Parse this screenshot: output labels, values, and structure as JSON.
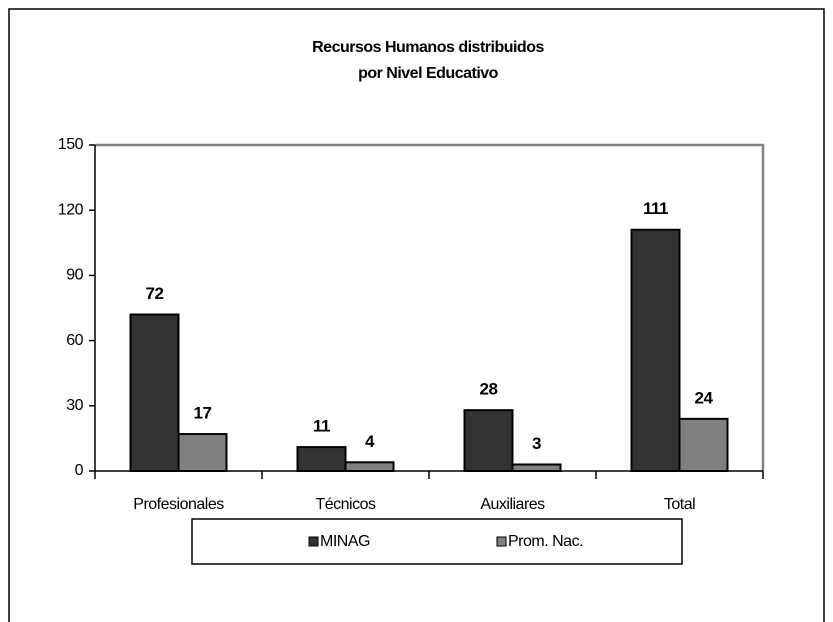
{
  "chart_data": {
    "type": "bar",
    "title": [
      "Recursos Humanos distribuidos",
      "por Nivel Educativo"
    ],
    "categories": [
      "Profesionales",
      "Técnicos",
      "Auxiliares",
      "Total"
    ],
    "series": [
      {
        "name": "MINAG",
        "color": "#333333",
        "values": [
          72,
          11,
          28,
          111
        ]
      },
      {
        "name": "Prom. Nac.",
        "color": "#808080",
        "values": [
          17,
          4,
          3,
          24
        ]
      }
    ],
    "ylim": [
      0,
      150
    ],
    "yticks": [
      0,
      30,
      60,
      90,
      120,
      150
    ],
    "grid": false,
    "legend": "bottom"
  }
}
